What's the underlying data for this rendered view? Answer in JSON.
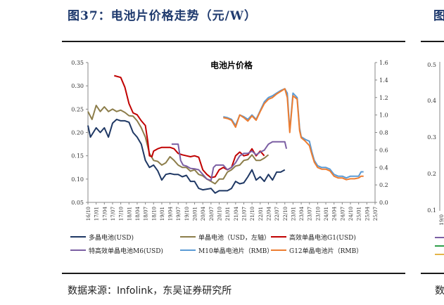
{
  "figure": {
    "title": "图37：电池片价格走势（元/W）",
    "source": "数据来源：Infolink，东吴证券研究所"
  },
  "right_panel": {
    "title_fragment": "图",
    "y_ticks": [
      "0.5",
      "0.4",
      "0.3",
      "0.2",
      "0.1"
    ],
    "x_tick_fragment": "19/0",
    "footer_fragment": "数"
  },
  "chart_data": {
    "type": "line",
    "title": "电池片价格",
    "x_ticks": [
      "16/10",
      "17/01",
      "17/04",
      "17/07",
      "17/10",
      "18/01",
      "18/04",
      "18/07",
      "18/10",
      "19/01",
      "19/04",
      "19/07",
      "19/10",
      "20/01",
      "20/04",
      "20/07",
      "20/10",
      "21/01",
      "21/04",
      "21/07",
      "21/10",
      "22/01",
      "22/04",
      "22/07",
      "22/10",
      "23/01",
      "23/04",
      "23/07",
      "23/10",
      "24/01",
      "24/04",
      "24/07",
      "24/10",
      "25/01",
      "25/04",
      "25/07"
    ],
    "y_left": {
      "min": 0.05,
      "max": 0.35,
      "ticks": [
        "0.05",
        "0.10",
        "0.15",
        "0.20",
        "0.25",
        "0.30",
        "0.35"
      ]
    },
    "y_right": {
      "min": 0.0,
      "max": 1.6,
      "ticks": [
        "0.0",
        "0.2",
        "0.4",
        "0.6",
        "0.8",
        "1.0",
        "1.2",
        "1.4",
        "1.6"
      ]
    },
    "series": [
      {
        "name": "多晶电池(USD)",
        "axis": "left",
        "color": "#1f3864",
        "points": [
          [
            0,
            0.215
          ],
          [
            0.3,
            0.19
          ],
          [
            1,
            0.21
          ],
          [
            1.5,
            0.2
          ],
          [
            2,
            0.21
          ],
          [
            2.5,
            0.19
          ],
          [
            3,
            0.22
          ],
          [
            3.5,
            0.228
          ],
          [
            4,
            0.225
          ],
          [
            4.5,
            0.225
          ],
          [
            5,
            0.222
          ],
          [
            5.5,
            0.2
          ],
          [
            6,
            0.19
          ],
          [
            6.5,
            0.175
          ],
          [
            7,
            0.14
          ],
          [
            7.5,
            0.125
          ],
          [
            8,
            0.13
          ],
          [
            8.5,
            0.118
          ],
          [
            9,
            0.098
          ],
          [
            9.5,
            0.11
          ],
          [
            10,
            0.112
          ],
          [
            10.5,
            0.11
          ],
          [
            11,
            0.11
          ],
          [
            11.5,
            0.105
          ],
          [
            12,
            0.108
          ],
          [
            12.5,
            0.095
          ],
          [
            13,
            0.095
          ],
          [
            13.5,
            0.08
          ],
          [
            14,
            0.077
          ],
          [
            15,
            0.08
          ],
          [
            15.5,
            0.07
          ],
          [
            16,
            0.075
          ],
          [
            17,
            0.075
          ],
          [
            17.5,
            0.08
          ],
          [
            18,
            0.095
          ],
          [
            18.5,
            0.09
          ],
          [
            19,
            0.092
          ],
          [
            19.5,
            0.105
          ],
          [
            20,
            0.12
          ],
          [
            20.5,
            0.098
          ],
          [
            21,
            0.105
          ],
          [
            21.5,
            0.095
          ],
          [
            22,
            0.11
          ],
          [
            22.5,
            0.098
          ],
          [
            23,
            0.115
          ],
          [
            23.5,
            0.115
          ],
          [
            24,
            0.12
          ]
        ]
      },
      {
        "name": "单晶电池（USD，左轴）",
        "axis": "left",
        "color": "#8c7d4a",
        "points": [
          [
            0,
            0.245
          ],
          [
            0.5,
            0.228
          ],
          [
            1,
            0.258
          ],
          [
            1.5,
            0.245
          ],
          [
            2,
            0.255
          ],
          [
            2.5,
            0.245
          ],
          [
            3,
            0.25
          ],
          [
            3.5,
            0.245
          ],
          [
            4,
            0.248
          ],
          [
            4.5,
            0.243
          ],
          [
            5,
            0.236
          ],
          [
            5.5,
            0.235
          ],
          [
            6,
            0.225
          ],
          [
            6.5,
            0.21
          ],
          [
            7,
            0.19
          ],
          [
            7.5,
            0.155
          ],
          [
            8,
            0.14
          ],
          [
            8.5,
            0.138
          ],
          [
            9,
            0.13
          ],
          [
            9.5,
            0.135
          ],
          [
            10,
            0.148
          ],
          [
            10.5,
            0.14
          ],
          [
            11,
            0.13
          ],
          [
            11.5,
            0.125
          ],
          [
            12,
            0.125
          ],
          [
            12.5,
            0.117
          ],
          [
            13,
            0.12
          ],
          [
            13.5,
            0.11
          ],
          [
            14,
            0.107
          ],
          [
            14.5,
            0.1
          ],
          [
            15,
            0.095
          ],
          [
            15.5,
            0.09
          ],
          [
            16,
            0.1
          ],
          [
            16.5,
            0.1
          ],
          [
            17,
            0.115
          ],
          [
            17.5,
            0.12
          ],
          [
            18,
            0.128
          ],
          [
            18.5,
            0.13
          ],
          [
            19,
            0.14
          ],
          [
            19.5,
            0.142
          ],
          [
            20,
            0.152
          ],
          [
            20.5,
            0.14
          ],
          [
            21,
            0.14
          ],
          [
            21.5,
            0.145
          ],
          [
            22,
            0.152
          ]
        ]
      },
      {
        "name": "高效单晶电池G1(USD)",
        "axis": "left",
        "color": "#c00000",
        "points": [
          [
            3.2,
            0.322
          ],
          [
            4,
            0.318
          ],
          [
            4.5,
            0.297
          ],
          [
            5,
            0.262
          ],
          [
            5.5,
            0.242
          ],
          [
            6,
            0.238
          ],
          [
            6.5,
            0.225
          ],
          [
            7,
            0.215
          ],
          [
            7.3,
            0.18
          ],
          [
            7.5,
            0.15
          ],
          [
            7.8,
            0.148
          ],
          [
            8,
            0.16
          ],
          [
            8.5,
            0.165
          ],
          [
            9,
            0.168
          ],
          [
            9.5,
            0.168
          ],
          [
            10,
            0.168
          ],
          [
            10.5,
            0.165
          ],
          [
            11,
            0.155
          ],
          [
            11.5,
            0.152
          ],
          [
            12,
            0.15
          ],
          [
            12.5,
            0.148
          ],
          [
            13,
            0.15
          ],
          [
            13.5,
            0.147
          ],
          [
            14,
            0.12
          ],
          [
            14.5,
            0.11
          ],
          [
            15,
            0.103
          ],
          [
            15.5,
            0.105
          ],
          [
            16,
            0.12
          ],
          [
            16.5,
            0.125
          ],
          [
            17,
            0.12
          ],
          [
            17.5,
            0.125
          ],
          [
            18,
            0.15
          ],
          [
            18.5,
            0.158
          ],
          [
            19,
            0.15
          ],
          [
            19.5,
            0.152
          ],
          [
            20,
            0.165
          ],
          [
            20.5,
            0.15
          ],
          [
            21,
            0.16
          ],
          [
            21.5,
            0.15
          ]
        ]
      },
      {
        "name": "特高效单晶电池M6(USD)",
        "axis": "left",
        "color": "#7b5fa3",
        "points": [
          [
            10.2,
            0.175
          ],
          [
            10.5,
            0.175
          ],
          [
            11,
            0.175
          ],
          [
            11.3,
            0.14
          ],
          [
            11.6,
            0.13
          ],
          [
            12,
            0.128
          ],
          [
            12.5,
            0.123
          ],
          [
            13,
            0.122
          ],
          [
            13.5,
            0.12
          ],
          [
            14,
            0.11
          ],
          [
            14.5,
            0.1
          ],
          [
            15,
            0.097
          ],
          [
            15.3,
            0.125
          ],
          [
            15.6,
            0.13
          ],
          [
            16,
            0.13
          ],
          [
            16.5,
            0.13
          ],
          [
            17,
            0.12
          ],
          [
            17.5,
            0.125
          ],
          [
            18,
            0.135
          ],
          [
            18.5,
            0.15
          ],
          [
            19,
            0.155
          ],
          [
            19.5,
            0.155
          ],
          [
            20,
            0.16
          ],
          [
            20.5,
            0.152
          ],
          [
            21,
            0.158
          ],
          [
            21.5,
            0.162
          ],
          [
            22,
            0.175
          ],
          [
            22.5,
            0.18
          ],
          [
            23,
            0.18
          ],
          [
            23.5,
            0.18
          ],
          [
            24,
            0.18
          ],
          [
            24.2,
            0.165
          ]
        ]
      },
      {
        "name": "M10单晶电池片（RMB）",
        "axis": "right",
        "color": "#5b9bd5",
        "points": [
          [
            16.5,
            0.98
          ],
          [
            17,
            0.97
          ],
          [
            17.5,
            0.95
          ],
          [
            18,
            0.88
          ],
          [
            18.5,
            1.0
          ],
          [
            19,
            0.98
          ],
          [
            19.5,
            0.95
          ],
          [
            20,
            1.0
          ],
          [
            20.5,
            0.95
          ],
          [
            21,
            1.05
          ],
          [
            21.5,
            1.15
          ],
          [
            22,
            1.2
          ],
          [
            22.5,
            1.22
          ],
          [
            23,
            1.25
          ],
          [
            23.5,
            1.28
          ],
          [
            24,
            1.3
          ],
          [
            24.3,
            1.25
          ],
          [
            24.6,
            0.82
          ],
          [
            25,
            1.25
          ],
          [
            25.5,
            1.2
          ],
          [
            25.8,
            0.85
          ],
          [
            26,
            0.75
          ],
          [
            26.5,
            0.72
          ],
          [
            27,
            0.7
          ],
          [
            27.3,
            0.58
          ],
          [
            27.6,
            0.48
          ],
          [
            28,
            0.42
          ],
          [
            28.5,
            0.4
          ],
          [
            29,
            0.4
          ],
          [
            29.5,
            0.38
          ],
          [
            30,
            0.32
          ],
          [
            30.5,
            0.3
          ],
          [
            31,
            0.3
          ],
          [
            31.5,
            0.28
          ],
          [
            32,
            0.3
          ],
          [
            32.5,
            0.3
          ],
          [
            33,
            0.3
          ],
          [
            33.3,
            0.35
          ],
          [
            33.6,
            0.35
          ]
        ]
      },
      {
        "name": "G12单晶电池片（RMB）",
        "axis": "right",
        "color": "#ed7d31",
        "points": [
          [
            16.5,
            0.97
          ],
          [
            17,
            0.96
          ],
          [
            17.5,
            0.94
          ],
          [
            18,
            0.86
          ],
          [
            18.5,
            1.0
          ],
          [
            19,
            0.97
          ],
          [
            19.5,
            0.93
          ],
          [
            20,
            0.99
          ],
          [
            20.5,
            0.94
          ],
          [
            21,
            1.04
          ],
          [
            21.5,
            1.13
          ],
          [
            22,
            1.18
          ],
          [
            22.5,
            1.2
          ],
          [
            23,
            1.24
          ],
          [
            23.5,
            1.27
          ],
          [
            24,
            1.3
          ],
          [
            24.3,
            1.2
          ],
          [
            24.6,
            0.8
          ],
          [
            25,
            1.22
          ],
          [
            25.5,
            1.18
          ],
          [
            25.8,
            0.82
          ],
          [
            26,
            0.74
          ],
          [
            26.5,
            0.7
          ],
          [
            27,
            0.65
          ],
          [
            27.3,
            0.55
          ],
          [
            27.6,
            0.46
          ],
          [
            28,
            0.4
          ],
          [
            28.5,
            0.38
          ],
          [
            29,
            0.38
          ],
          [
            29.5,
            0.36
          ],
          [
            30,
            0.3
          ],
          [
            30.5,
            0.28
          ],
          [
            31,
            0.28
          ],
          [
            31.5,
            0.26
          ],
          [
            32,
            0.27
          ],
          [
            32.5,
            0.27
          ],
          [
            33,
            0.28
          ],
          [
            33.3,
            0.3
          ],
          [
            33.6,
            0.3
          ]
        ]
      }
    ]
  }
}
